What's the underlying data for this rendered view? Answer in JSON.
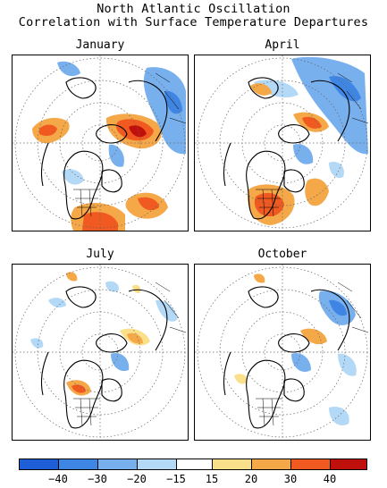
{
  "title_line1": "North Atlantic Oscillation",
  "title_line2": "Correlation with Surface Temperature Departures",
  "panels": [
    {
      "id": "jan",
      "month": "January"
    },
    {
      "id": "apr",
      "month": "April"
    },
    {
      "id": "jul",
      "month": "July"
    },
    {
      "id": "oct",
      "month": "October"
    }
  ],
  "colorbar": {
    "colors": [
      "#1e5fd8",
      "#3f86e4",
      "#78b0ee",
      "#b4d9f7",
      "#ffffff",
      "#fbe08c",
      "#f5a848",
      "#f05a20",
      "#c0100c"
    ],
    "labels": [
      "−40",
      "−30",
      "−20",
      "−15",
      "15",
      "20",
      "30",
      "40"
    ]
  }
}
